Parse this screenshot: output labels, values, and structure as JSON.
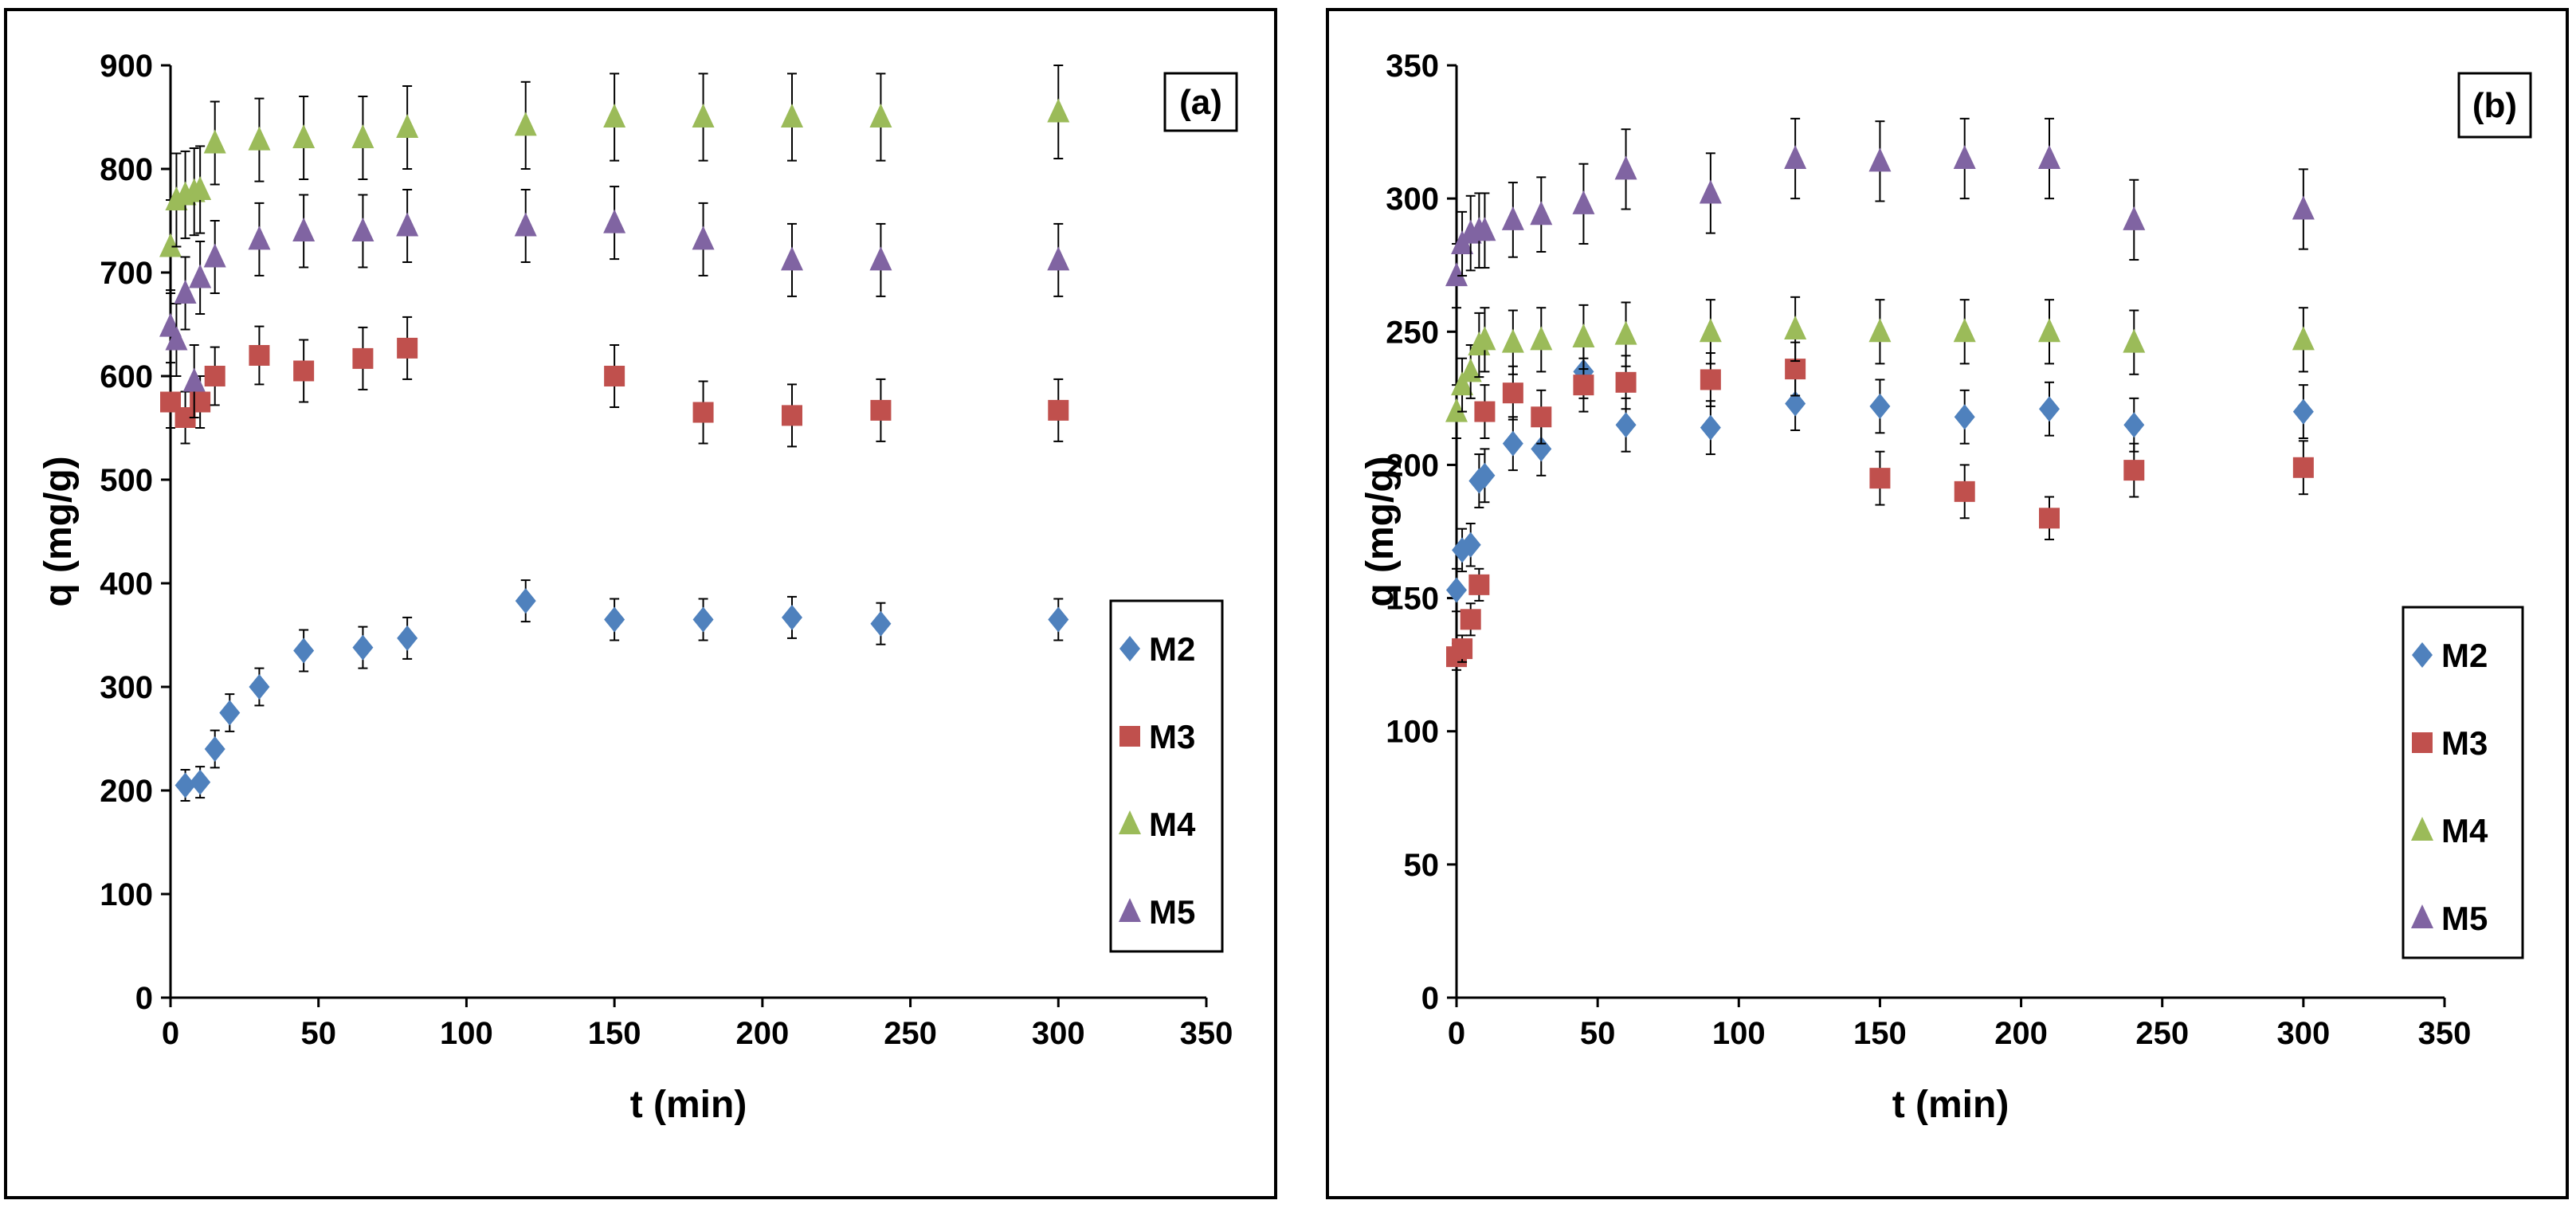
{
  "colors": {
    "M2": "#4f81bd",
    "M3": "#c0504d",
    "M4": "#9bbb59",
    "M5": "#8064a2",
    "error_bar": "#000000",
    "axis": "#000000"
  },
  "markers": {
    "M2": "diamond",
    "M3": "square",
    "M4": "triangle",
    "M5": "triangle"
  },
  "chart_data": [
    {
      "type": "scatter",
      "panel_label": "(a)",
      "xlabel": "t (min)",
      "ylabel": "q (mg/g)",
      "xlim": [
        0,
        350
      ],
      "ylim": [
        0,
        900
      ],
      "xticks": [
        0,
        50,
        100,
        150,
        200,
        250,
        300,
        350
      ],
      "yticks": [
        0,
        100,
        200,
        300,
        400,
        500,
        600,
        700,
        800,
        900
      ],
      "legend": [
        "M2",
        "M3",
        "M4",
        "M5"
      ],
      "legend_position": "right",
      "series": [
        {
          "name": "M2",
          "x": [
            2,
            5,
            10,
            15,
            20,
            30,
            45,
            65,
            80,
            120,
            150,
            180,
            210,
            240,
            300
          ],
          "y": [
            null,
            205,
            208,
            240,
            275,
            300,
            335,
            338,
            347,
            383,
            365,
            365,
            367,
            361,
            365
          ],
          "err": [
            0,
            15,
            15,
            18,
            18,
            18,
            20,
            20,
            20,
            20,
            20,
            20,
            20,
            20,
            20
          ]
        },
        {
          "name": "M3",
          "x": [
            0,
            5,
            10,
            15,
            30,
            45,
            65,
            80,
            150,
            180,
            210,
            240,
            300
          ],
          "y": [
            575,
            560,
            575,
            600,
            620,
            605,
            617,
            627,
            600,
            565,
            562,
            567,
            567
          ],
          "err": [
            25,
            25,
            25,
            28,
            28,
            30,
            30,
            30,
            30,
            30,
            30,
            30,
            30
          ]
        },
        {
          "name": "M4",
          "x": [
            0,
            2,
            5,
            8,
            10,
            15,
            30,
            45,
            65,
            80,
            120,
            150,
            180,
            210,
            240,
            300
          ],
          "y": [
            725,
            770,
            775,
            778,
            780,
            825,
            828,
            830,
            830,
            840,
            842,
            850,
            850,
            850,
            850,
            855
          ],
          "err": [
            45,
            45,
            42,
            42,
            42,
            40,
            40,
            40,
            40,
            40,
            42,
            42,
            42,
            42,
            42,
            45
          ]
        },
        {
          "name": "M5",
          "x": [
            0,
            2,
            5,
            8,
            10,
            15,
            30,
            45,
            65,
            80,
            120,
            150,
            180,
            210,
            240,
            300
          ],
          "y": [
            648,
            635,
            680,
            595,
            695,
            715,
            732,
            740,
            740,
            745,
            745,
            748,
            732,
            712,
            712,
            712
          ],
          "err": [
            35,
            35,
            35,
            35,
            35,
            35,
            35,
            35,
            35,
            35,
            35,
            35,
            35,
            35,
            35,
            35
          ]
        }
      ]
    },
    {
      "type": "scatter",
      "panel_label": "(b)",
      "xlabel": "t (min)",
      "ylabel": "q (mg/g)",
      "xlim": [
        0,
        350
      ],
      "ylim": [
        0,
        350
      ],
      "xticks": [
        0,
        50,
        100,
        150,
        200,
        250,
        300,
        350
      ],
      "yticks": [
        0,
        50,
        100,
        150,
        200,
        250,
        300,
        350
      ],
      "legend": [
        "M2",
        "M3",
        "M4",
        "M5"
      ],
      "legend_position": "right",
      "series": [
        {
          "name": "M2",
          "x": [
            0,
            2,
            5,
            8,
            10,
            20,
            30,
            45,
            60,
            90,
            120,
            150,
            180,
            210,
            240,
            300
          ],
          "y": [
            153,
            168,
            170,
            194,
            196,
            208,
            206,
            235,
            215,
            214,
            223,
            222,
            218,
            221,
            215,
            220
          ],
          "err": [
            8,
            8,
            8,
            10,
            10,
            10,
            10,
            10,
            10,
            10,
            10,
            10,
            10,
            10,
            10,
            10
          ]
        },
        {
          "name": "M3",
          "x": [
            0,
            2,
            5,
            8,
            10,
            20,
            30,
            45,
            60,
            90,
            120,
            150,
            180,
            210,
            240,
            300
          ],
          "y": [
            128,
            131,
            142,
            155,
            220,
            227,
            218,
            230,
            231,
            232,
            236,
            195,
            190,
            180,
            198,
            199
          ],
          "err": [
            5,
            5,
            6,
            6,
            10,
            10,
            10,
            10,
            10,
            10,
            10,
            10,
            10,
            8,
            10,
            10
          ]
        },
        {
          "name": "M4",
          "x": [
            0,
            2,
            5,
            8,
            10,
            20,
            30,
            45,
            60,
            90,
            120,
            150,
            180,
            210,
            240,
            300
          ],
          "y": [
            220,
            230,
            235,
            245,
            247,
            246,
            247,
            248,
            249,
            250,
            251,
            250,
            250,
            250,
            246,
            247
          ],
          "err": [
            10,
            10,
            10,
            12,
            12,
            12,
            12,
            12,
            12,
            12,
            12,
            12,
            12,
            12,
            12,
            12
          ]
        },
        {
          "name": "M5",
          "x": [
            0,
            2,
            5,
            8,
            10,
            20,
            30,
            45,
            60,
            90,
            120,
            150,
            180,
            210,
            240,
            300
          ],
          "y": [
            271,
            283,
            287,
            288,
            288,
            292,
            294,
            298,
            311,
            302,
            315,
            314,
            315,
            315,
            292,
            296
          ],
          "err": [
            12,
            12,
            14,
            14,
            14,
            14,
            14,
            15,
            15,
            15,
            15,
            15,
            15,
            15,
            15,
            15
          ]
        }
      ]
    }
  ]
}
